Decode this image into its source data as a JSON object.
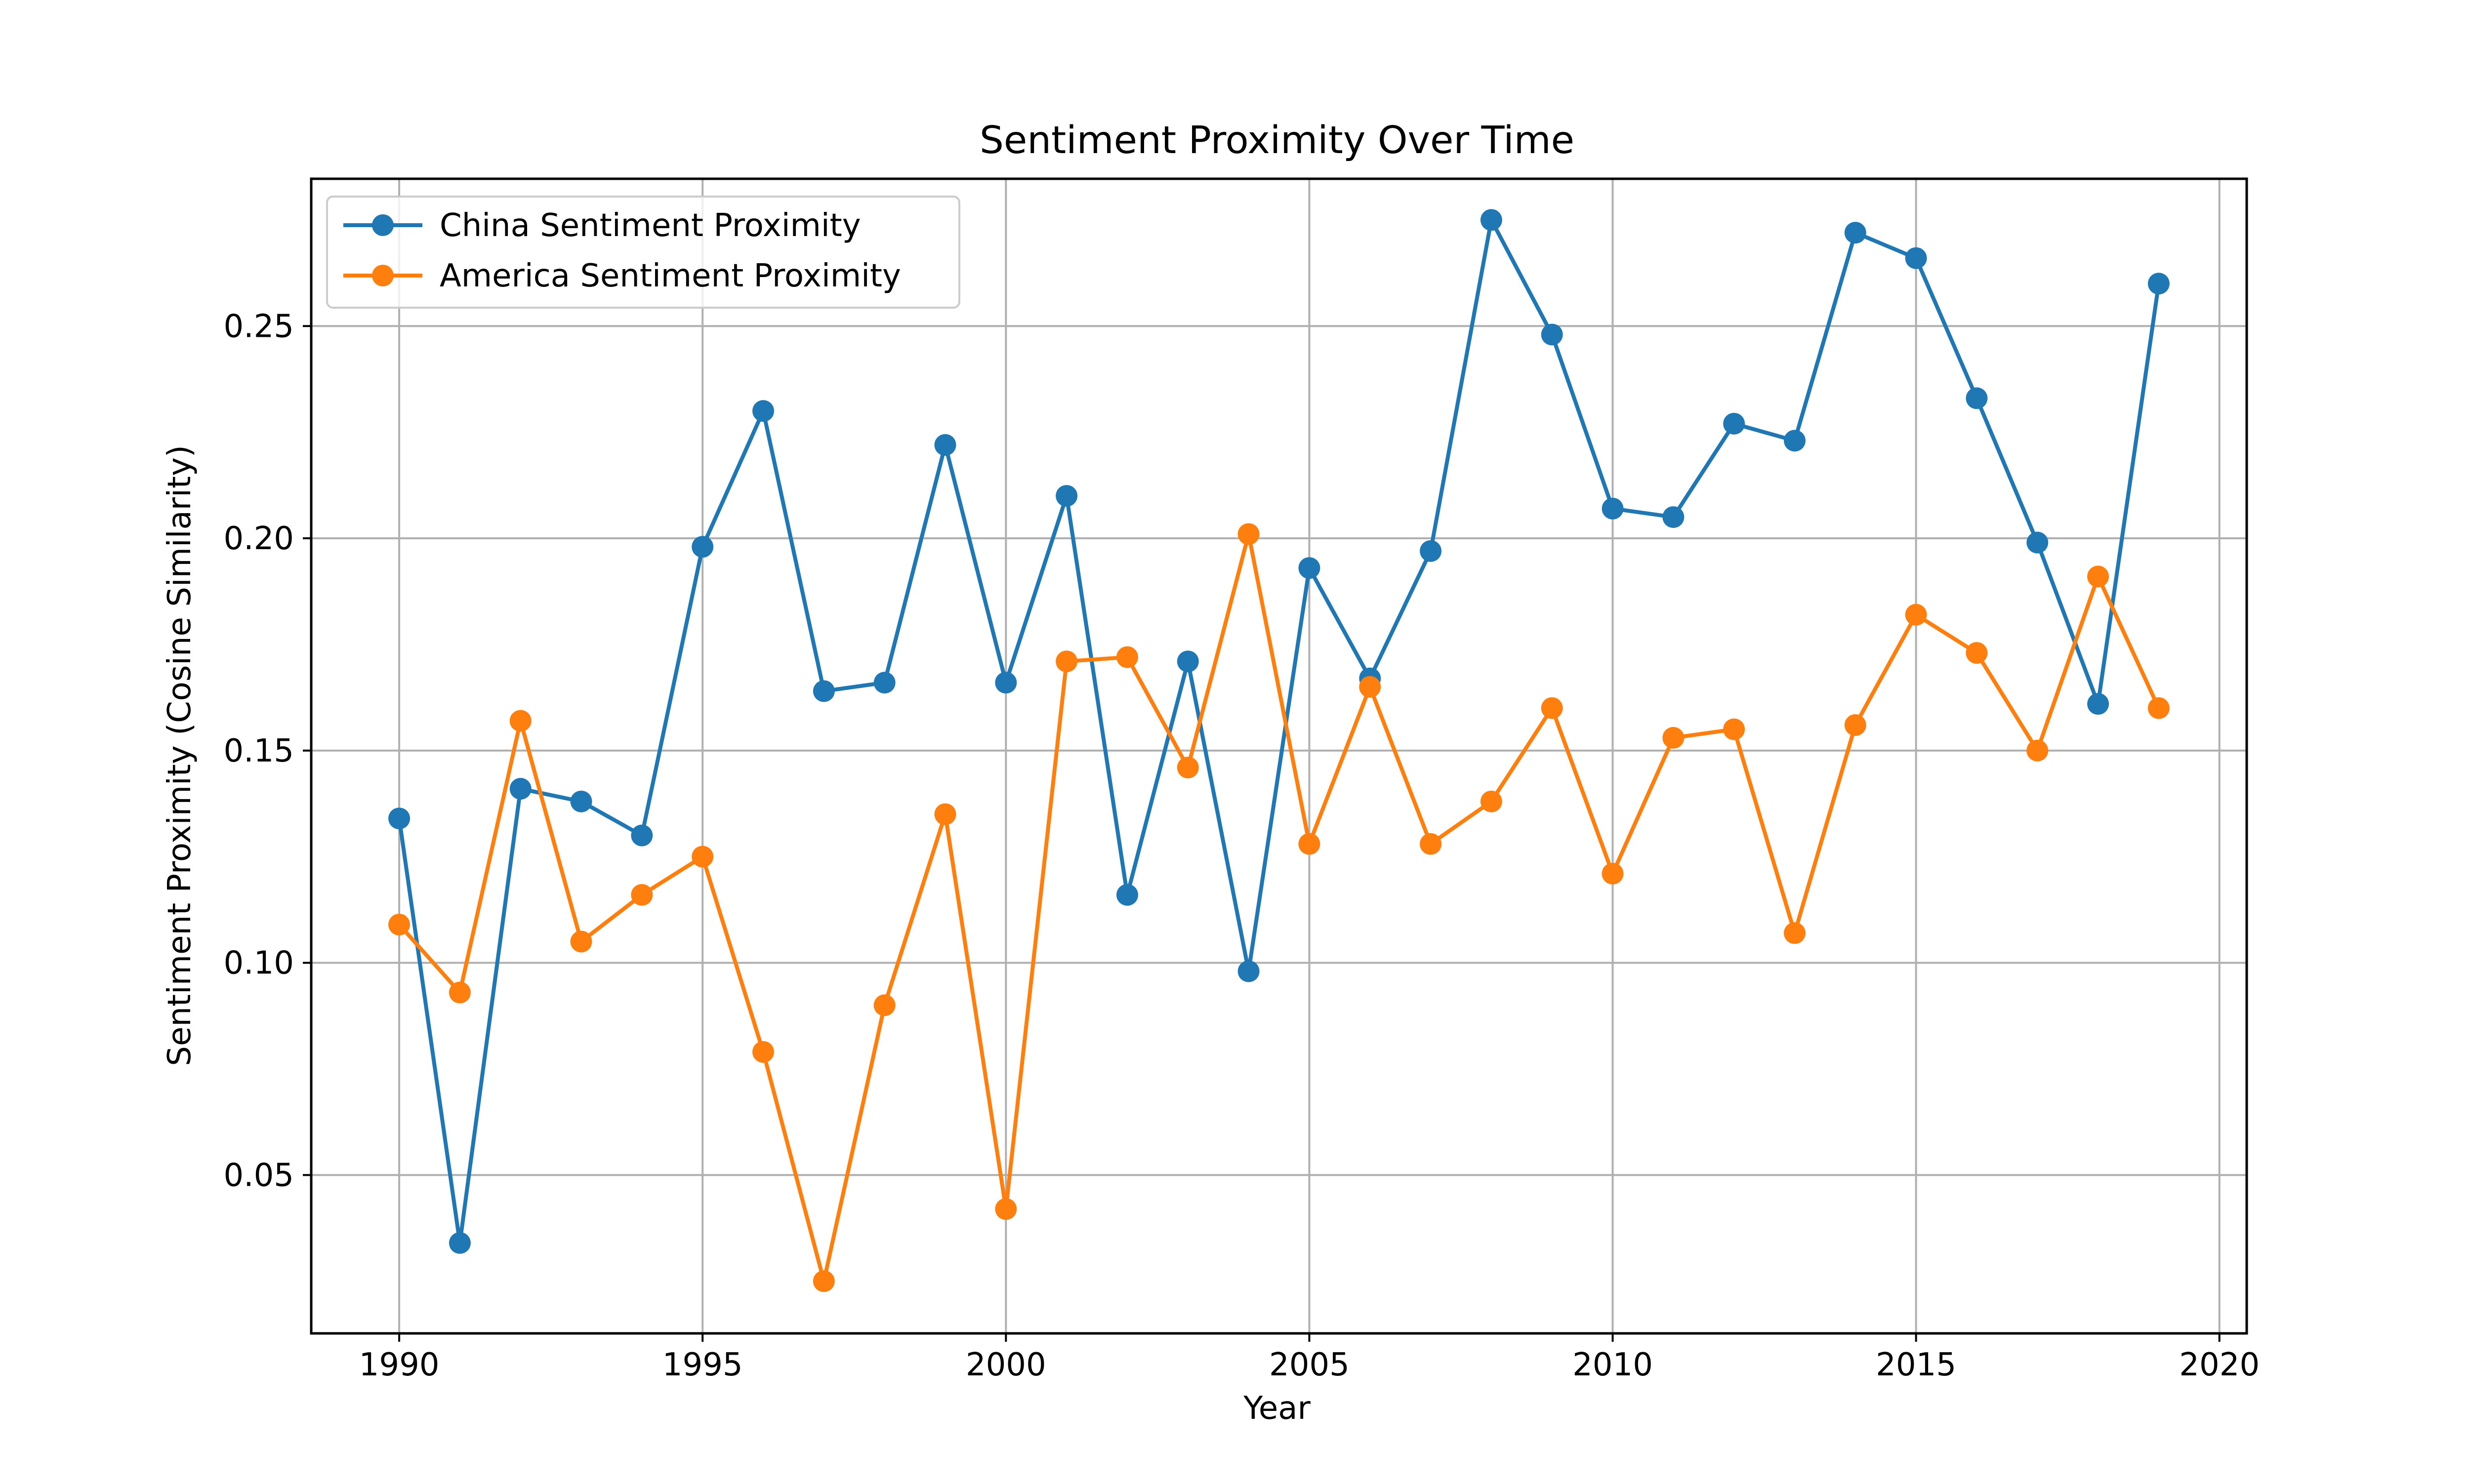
{
  "chart_data": {
    "type": "line",
    "title": "Sentiment Proximity Over Time",
    "xlabel": "Year",
    "ylabel": "Sentiment Proximity (Cosine Similarity)",
    "xlim": [
      1988.55,
      2020.45
    ],
    "ylim": [
      0.0127,
      0.2847
    ],
    "x_ticks": [
      1990,
      1995,
      2000,
      2005,
      2010,
      2015,
      2020
    ],
    "y_ticks": [
      0.05,
      0.1,
      0.15,
      0.2,
      0.25
    ],
    "y_tick_labels": [
      "0.05",
      "0.10",
      "0.15",
      "0.20",
      "0.25"
    ],
    "grid": true,
    "legend_position": "top-left",
    "x": [
      1990,
      1991,
      1992,
      1993,
      1994,
      1995,
      1996,
      1997,
      1998,
      1999,
      2000,
      2001,
      2002,
      2003,
      2004,
      2005,
      2006,
      2007,
      2008,
      2009,
      2010,
      2011,
      2012,
      2013,
      2014,
      2015,
      2016,
      2017,
      2018,
      2019
    ],
    "series": [
      {
        "name": "China Sentiment Proximity",
        "color": "#1f77b4",
        "marker": "circle",
        "values": [
          0.134,
          0.034,
          0.141,
          0.138,
          0.13,
          0.198,
          0.23,
          0.164,
          0.166,
          0.222,
          0.166,
          0.21,
          0.116,
          0.171,
          0.098,
          0.193,
          0.167,
          0.197,
          0.275,
          0.248,
          0.207,
          0.205,
          0.227,
          0.223,
          0.272,
          0.266,
          0.233,
          0.199,
          0.161,
          0.26
        ]
      },
      {
        "name": "America Sentiment Proximity",
        "color": "#ff7f0e",
        "marker": "circle",
        "values": [
          0.109,
          0.093,
          0.157,
          0.105,
          0.116,
          0.125,
          0.079,
          0.025,
          0.09,
          0.135,
          0.042,
          0.171,
          0.172,
          0.146,
          0.201,
          0.128,
          0.165,
          0.128,
          0.138,
          0.16,
          0.121,
          0.153,
          0.155,
          0.107,
          0.156,
          0.182,
          0.173,
          0.15,
          0.191,
          0.16
        ]
      }
    ]
  }
}
